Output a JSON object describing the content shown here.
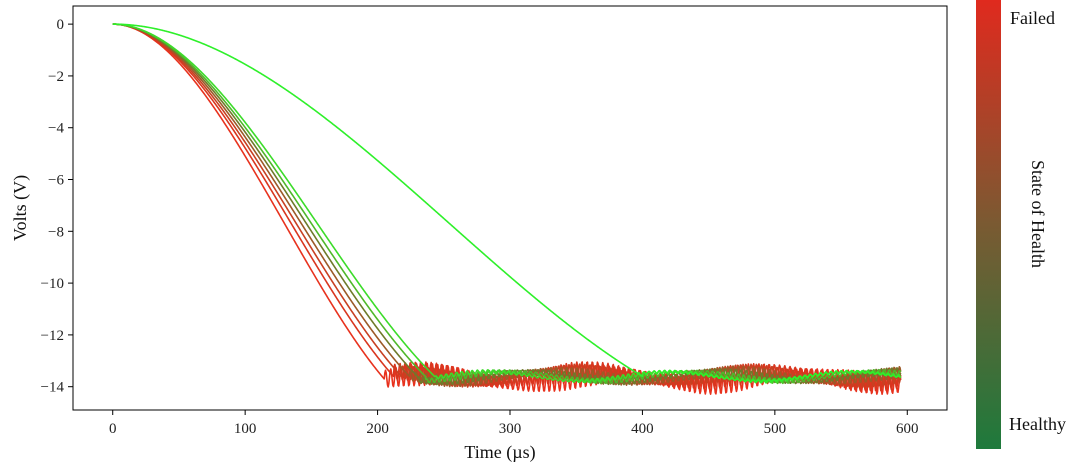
{
  "chart_data": {
    "type": "line",
    "title": "",
    "xlabel": "Time (µs)",
    "ylabel": "Volts (V)",
    "xlim": [
      -30,
      630
    ],
    "ylim": [
      -14.9,
      0.7
    ],
    "xticks": [
      0,
      100,
      200,
      300,
      400,
      500,
      600
    ],
    "yticks": [
      0,
      -2,
      -4,
      -6,
      -8,
      -10,
      -12,
      -14
    ],
    "xtick_labels": [
      "0",
      "100",
      "200",
      "300",
      "400",
      "500",
      "600"
    ],
    "ytick_labels": [
      "0",
      "−2",
      "−4",
      "−6",
      "−8",
      "−10",
      "−12",
      "−14"
    ],
    "grid": false,
    "colorbar": {
      "label": "State of Health",
      "top_label": "Failed",
      "bottom_label": "Healthy",
      "top_color": "#e02a1e",
      "bottom_color": "#1e7a3c"
    },
    "series": [
      {
        "color": "#e8321e",
        "settle_time": 205,
        "settle_value": -13.7,
        "oscillation_amplitude": 0.85
      },
      {
        "color": "#d9361f",
        "settle_time": 212,
        "settle_value": -13.6,
        "oscillation_amplitude": 0.8
      },
      {
        "color": "#c84022",
        "settle_time": 218,
        "settle_value": -13.6,
        "oscillation_amplitude": 0.6
      },
      {
        "color": "#9c5a28",
        "settle_time": 224,
        "settle_value": -13.6,
        "oscillation_amplitude": 0.45
      },
      {
        "color": "#6f7a2a",
        "settle_time": 230,
        "settle_value": -13.6,
        "oscillation_amplitude": 0.3
      },
      {
        "color": "#4fb82a",
        "settle_time": 236,
        "settle_value": -13.6,
        "oscillation_amplitude": 0.2
      },
      {
        "color": "#3cdc2a",
        "settle_time": 243,
        "settle_value": -13.6,
        "oscillation_amplitude": 0.15
      },
      {
        "color": "#2ef02a",
        "settle_time": 400,
        "settle_value": -13.6,
        "oscillation_amplitude": 0.1
      }
    ]
  }
}
